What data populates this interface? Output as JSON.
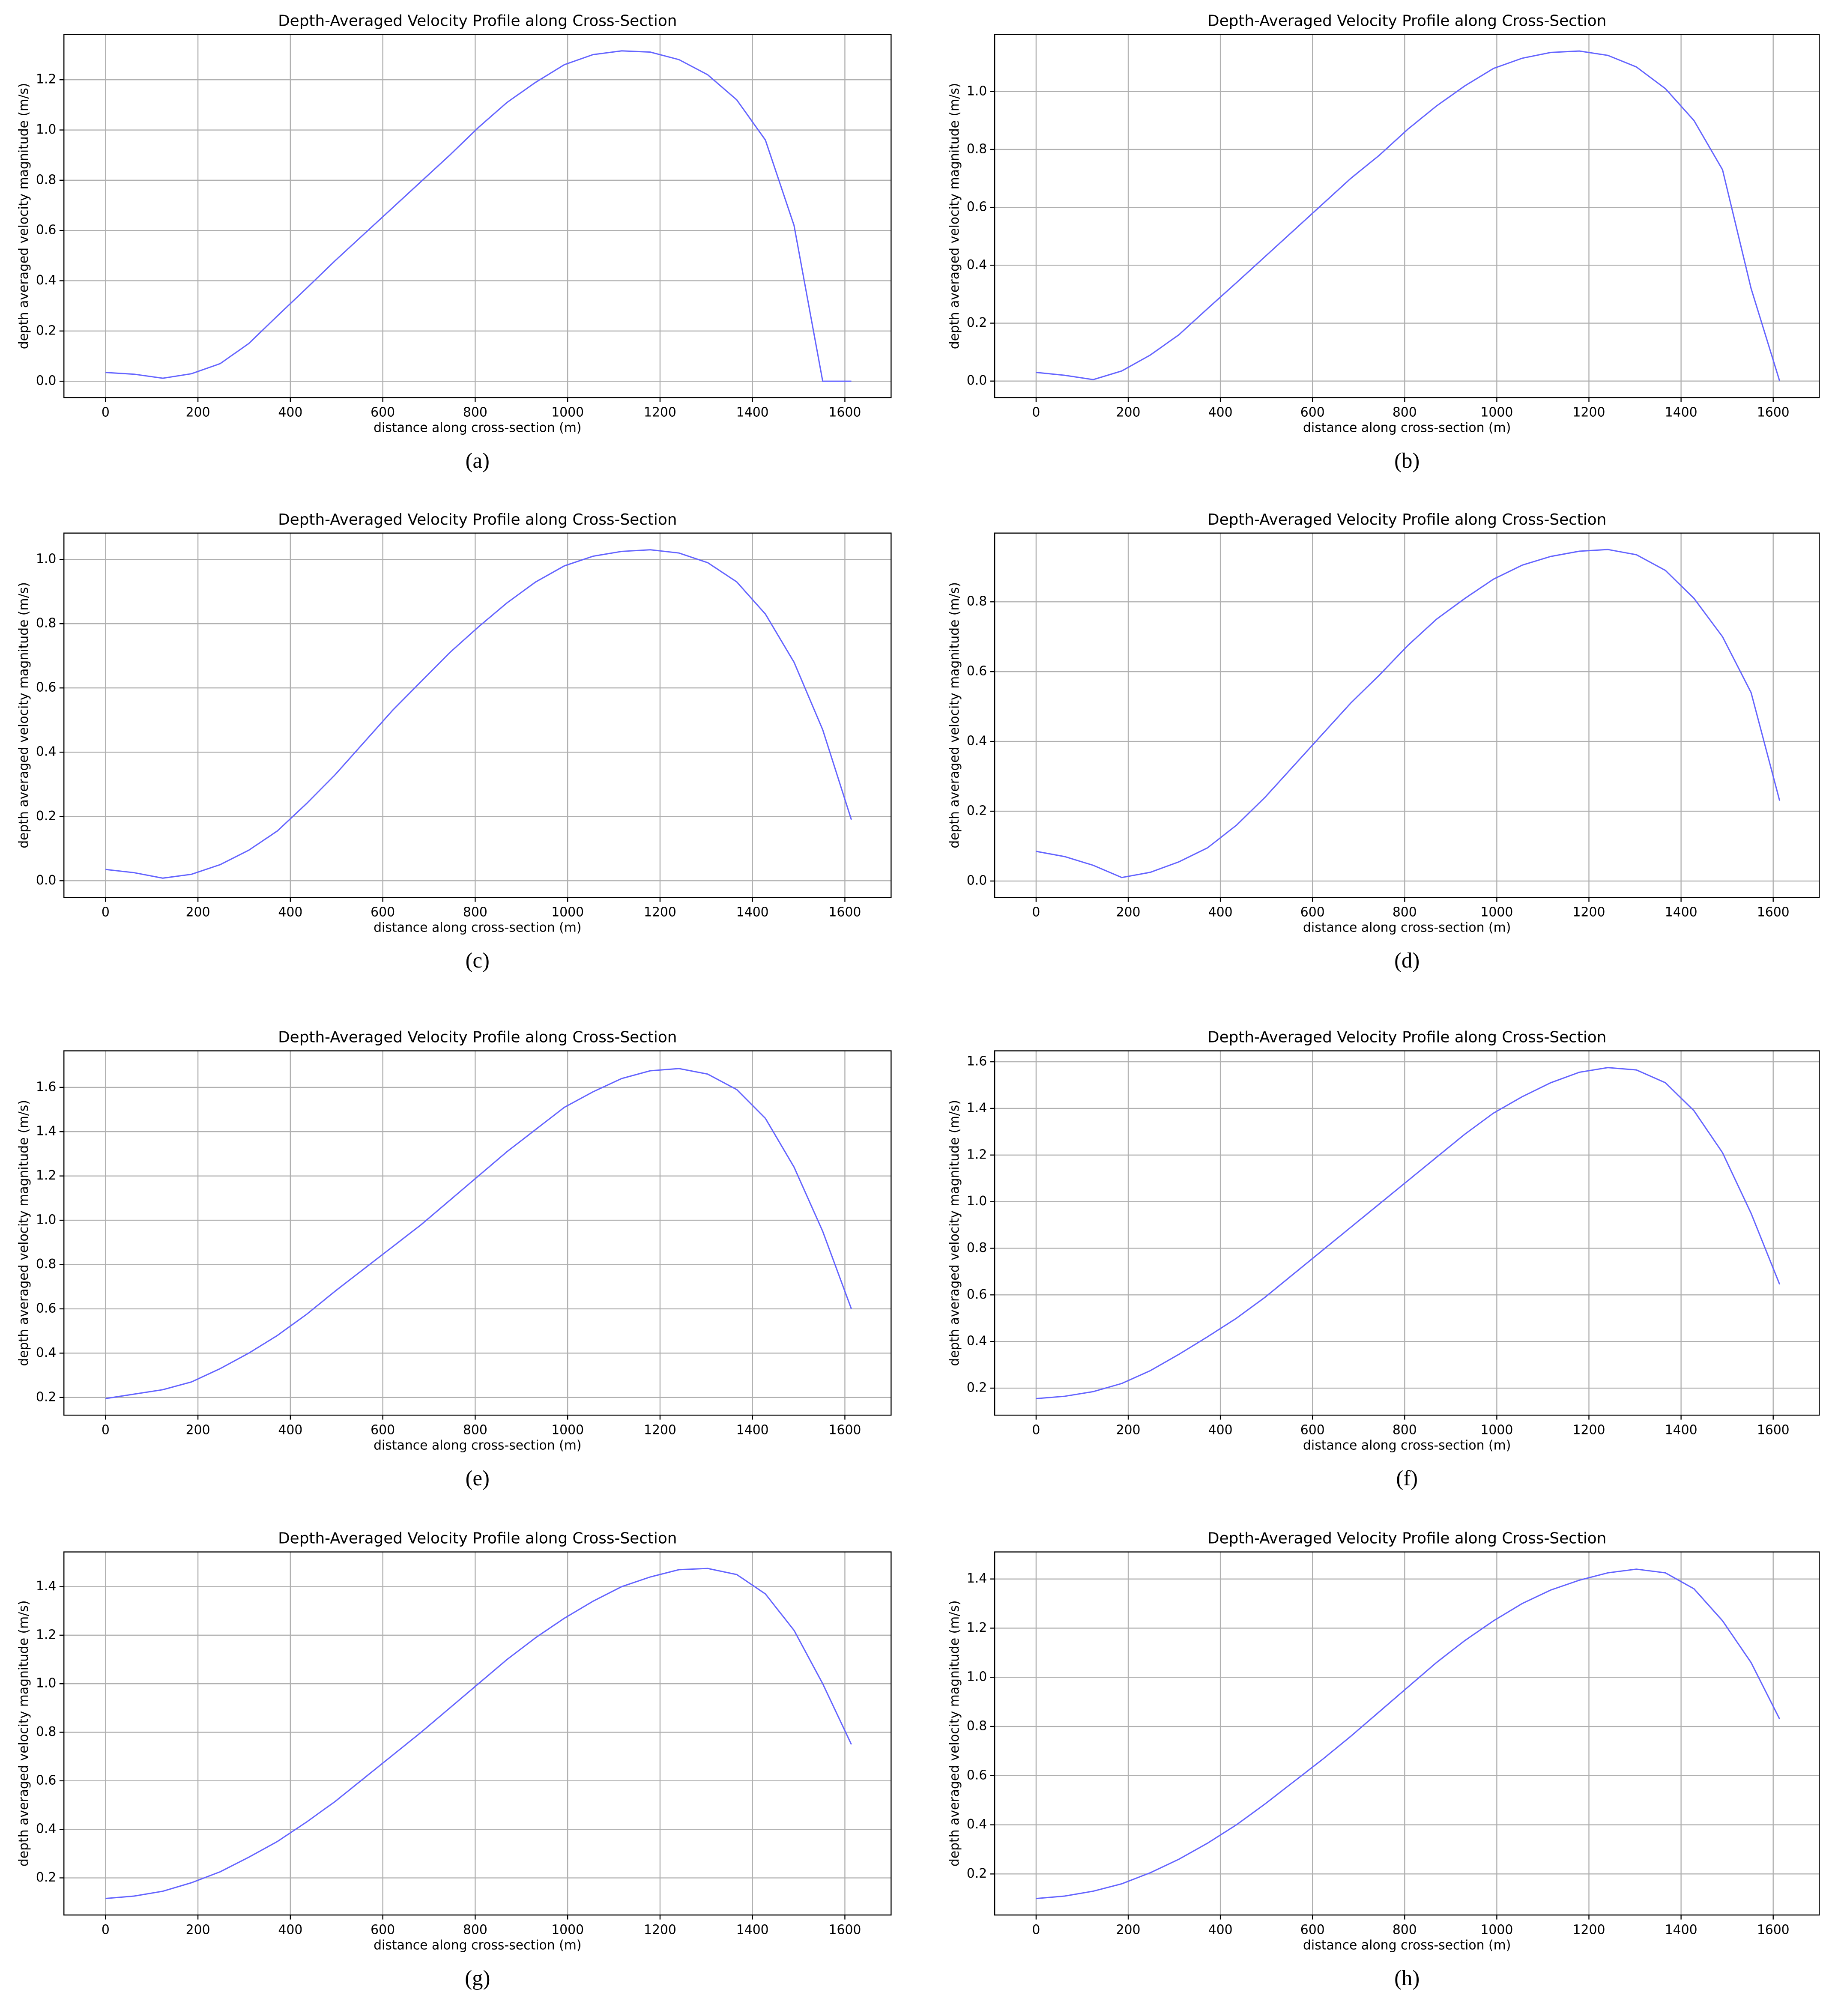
{
  "chart_data": [
    {
      "type": "line",
      "title": "Depth-Averaged Velocity Profile along Cross-Section",
      "xlabel": "distance along cross-section (m)",
      "ylabel": "depth averaged velocity magnitude (m/s)",
      "caption": "(a)",
      "color": "#6464ff",
      "x": [
        0,
        62,
        124,
        186,
        248,
        310,
        372,
        435,
        497,
        559,
        621,
        683,
        745,
        807,
        869,
        931,
        993,
        1055,
        1117,
        1179,
        1241,
        1303,
        1366,
        1428,
        1490,
        1552,
        1614
      ],
      "values": [
        0.035,
        0.028,
        0.012,
        0.03,
        0.07,
        0.15,
        0.26,
        0.37,
        0.48,
        0.585,
        0.69,
        0.795,
        0.9,
        1.01,
        1.11,
        1.19,
        1.26,
        1.3,
        1.315,
        1.31,
        1.28,
        1.22,
        1.12,
        0.96,
        0.62,
        0.0,
        0.0
      ],
      "xlim": [
        -90,
        1700
      ],
      "xticks": [
        0,
        200,
        400,
        600,
        800,
        1000,
        1200,
        1400,
        1600
      ],
      "ylim": [
        -0.065,
        1.38
      ],
      "yticks": [
        {
          "value": 0,
          "label": "0.0"
        },
        0.2,
        0.4,
        0.6,
        0.8,
        {
          "value": 1,
          "label": "1.0"
        },
        1.2
      ],
      "grid": true
    },
    {
      "type": "line",
      "title": "Depth-Averaged Velocity Profile along Cross-Section",
      "xlabel": "distance along cross-section (m)",
      "ylabel": "depth averaged velocity magnitude (m/s)",
      "caption": "(b)",
      "color": "#6464ff",
      "x": [
        0,
        62,
        124,
        186,
        248,
        310,
        372,
        435,
        497,
        559,
        621,
        683,
        745,
        807,
        869,
        931,
        993,
        1055,
        1117,
        1179,
        1241,
        1303,
        1366,
        1428,
        1490,
        1552,
        1614
      ],
      "values": [
        0.03,
        0.02,
        0.005,
        0.035,
        0.09,
        0.16,
        0.25,
        0.34,
        0.43,
        0.52,
        0.61,
        0.7,
        0.78,
        0.87,
        0.95,
        1.02,
        1.08,
        1.115,
        1.135,
        1.14,
        1.125,
        1.085,
        1.01,
        0.9,
        0.73,
        0.32,
        0.0
      ],
      "xlim": [
        -90,
        1700
      ],
      "xticks": [
        0,
        200,
        400,
        600,
        800,
        1000,
        1200,
        1400,
        1600
      ],
      "ylim": [
        -0.057,
        1.197
      ],
      "yticks": [
        {
          "value": 0,
          "label": "0.0"
        },
        0.2,
        0.4,
        0.6,
        0.8,
        {
          "value": 1,
          "label": "1.0"
        }
      ],
      "grid": true
    },
    {
      "type": "line",
      "title": "Depth-Averaged Velocity Profile along Cross-Section",
      "xlabel": "distance along cross-section (m)",
      "ylabel": "depth averaged velocity magnitude (m/s)",
      "caption": "(c)",
      "color": "#6464ff",
      "x": [
        0,
        62,
        124,
        186,
        248,
        310,
        372,
        435,
        497,
        559,
        621,
        683,
        745,
        807,
        869,
        931,
        993,
        1055,
        1117,
        1179,
        1241,
        1303,
        1366,
        1428,
        1490,
        1552,
        1614
      ],
      "values": [
        0.035,
        0.025,
        0.008,
        0.02,
        0.05,
        0.095,
        0.155,
        0.24,
        0.33,
        0.43,
        0.53,
        0.62,
        0.71,
        0.79,
        0.865,
        0.93,
        0.98,
        1.01,
        1.025,
        1.03,
        1.02,
        0.99,
        0.93,
        0.83,
        0.68,
        0.47,
        0.19
      ],
      "xlim": [
        -90,
        1700
      ],
      "xticks": [
        0,
        200,
        400,
        600,
        800,
        1000,
        1200,
        1400,
        1600
      ],
      "ylim": [
        -0.052,
        1.082
      ],
      "yticks": [
        {
          "value": 0,
          "label": "0.0"
        },
        0.2,
        0.4,
        0.6,
        0.8,
        {
          "value": 1,
          "label": "1.0"
        }
      ],
      "grid": true
    },
    {
      "type": "line",
      "title": "Depth-Averaged Velocity Profile along Cross-Section",
      "xlabel": "distance along cross-section (m)",
      "ylabel": "depth averaged velocity magnitude (m/s)",
      "caption": "(d)",
      "color": "#6464ff",
      "x": [
        0,
        62,
        124,
        186,
        248,
        310,
        372,
        435,
        497,
        559,
        621,
        683,
        745,
        807,
        869,
        931,
        993,
        1055,
        1117,
        1179,
        1241,
        1303,
        1366,
        1428,
        1490,
        1552,
        1614
      ],
      "values": [
        0.085,
        0.07,
        0.045,
        0.01,
        0.025,
        0.055,
        0.095,
        0.16,
        0.24,
        0.33,
        0.42,
        0.51,
        0.59,
        0.675,
        0.75,
        0.81,
        0.865,
        0.905,
        0.93,
        0.945,
        0.95,
        0.935,
        0.89,
        0.81,
        0.7,
        0.54,
        0.23
      ],
      "xlim": [
        -90,
        1700
      ],
      "xticks": [
        0,
        200,
        400,
        600,
        800,
        1000,
        1200,
        1400,
        1600
      ],
      "ylim": [
        -0.047,
        0.997
      ],
      "yticks": [
        {
          "value": 0,
          "label": "0.0"
        },
        0.2,
        0.4,
        0.6,
        0.8
      ],
      "grid": true
    },
    {
      "type": "line",
      "title": "Depth-Averaged Velocity Profile along Cross-Section",
      "xlabel": "distance along cross-section (m)",
      "ylabel": "depth averaged velocity magnitude (m/s)",
      "caption": "(e)",
      "color": "#6464ff",
      "x": [
        0,
        62,
        124,
        186,
        248,
        310,
        372,
        435,
        497,
        559,
        621,
        683,
        745,
        807,
        869,
        931,
        993,
        1055,
        1117,
        1179,
        1241,
        1303,
        1366,
        1428,
        1490,
        1552,
        1614
      ],
      "values": [
        0.195,
        0.215,
        0.235,
        0.27,
        0.33,
        0.4,
        0.48,
        0.575,
        0.68,
        0.78,
        0.88,
        0.98,
        1.09,
        1.2,
        1.31,
        1.41,
        1.51,
        1.58,
        1.64,
        1.675,
        1.685,
        1.66,
        1.59,
        1.46,
        1.24,
        0.95,
        0.6
      ],
      "xlim": [
        -90,
        1700
      ],
      "xticks": [
        0,
        200,
        400,
        600,
        800,
        1000,
        1200,
        1400,
        1600
      ],
      "ylim": [
        0.12,
        1.765
      ],
      "yticks": [
        0.2,
        0.4,
        0.6,
        0.8,
        {
          "value": 1,
          "label": "1.0"
        },
        1.2,
        1.4,
        1.6
      ],
      "grid": true
    },
    {
      "type": "line",
      "title": "Depth-Averaged Velocity Profile along Cross-Section",
      "xlabel": "distance along cross-section (m)",
      "ylabel": "depth averaged velocity magnitude (m/s)",
      "caption": "(f)",
      "color": "#6464ff",
      "x": [
        0,
        62,
        124,
        186,
        248,
        310,
        372,
        435,
        497,
        559,
        621,
        683,
        745,
        807,
        869,
        931,
        993,
        1055,
        1117,
        1179,
        1241,
        1303,
        1366,
        1428,
        1490,
        1552,
        1614
      ],
      "values": [
        0.155,
        0.165,
        0.185,
        0.22,
        0.275,
        0.345,
        0.42,
        0.5,
        0.59,
        0.69,
        0.79,
        0.89,
        0.99,
        1.09,
        1.19,
        1.29,
        1.38,
        1.45,
        1.51,
        1.555,
        1.575,
        1.565,
        1.51,
        1.39,
        1.21,
        0.95,
        0.645
      ],
      "xlim": [
        -90,
        1700
      ],
      "xticks": [
        0,
        200,
        400,
        600,
        800,
        1000,
        1200,
        1400,
        1600
      ],
      "ylim": [
        0.084,
        1.647
      ],
      "yticks": [
        0.2,
        0.4,
        0.6,
        0.8,
        {
          "value": 1,
          "label": "1.0"
        },
        1.2,
        1.4,
        1.6
      ],
      "grid": true
    },
    {
      "type": "line",
      "title": "Depth-Averaged Velocity Profile along Cross-Section",
      "xlabel": "distance along cross-section (m)",
      "ylabel": "depth averaged velocity magnitude (m/s)",
      "caption": "(g)",
      "color": "#6464ff",
      "x": [
        0,
        62,
        124,
        186,
        248,
        310,
        372,
        435,
        497,
        559,
        621,
        683,
        745,
        807,
        869,
        931,
        993,
        1055,
        1117,
        1179,
        1241,
        1303,
        1366,
        1428,
        1490,
        1552,
        1614
      ],
      "values": [
        0.115,
        0.125,
        0.145,
        0.18,
        0.225,
        0.285,
        0.35,
        0.43,
        0.515,
        0.61,
        0.705,
        0.8,
        0.9,
        1.0,
        1.1,
        1.19,
        1.27,
        1.34,
        1.4,
        1.44,
        1.47,
        1.475,
        1.45,
        1.37,
        1.22,
        1.0,
        0.75
      ],
      "xlim": [
        -90,
        1700
      ],
      "xticks": [
        0,
        200,
        400,
        600,
        800,
        1000,
        1200,
        1400,
        1600
      ],
      "ylim": [
        0.047,
        1.543
      ],
      "yticks": [
        0.2,
        0.4,
        0.6,
        0.8,
        {
          "value": 1,
          "label": "1.0"
        },
        1.2,
        1.4
      ],
      "grid": true
    },
    {
      "type": "line",
      "title": "Depth-Averaged Velocity Profile along Cross-Section",
      "xlabel": "distance along cross-section (m)",
      "ylabel": "depth averaged velocity magnitude (m/s)",
      "caption": "(h)",
      "color": "#6464ff",
      "x": [
        0,
        62,
        124,
        186,
        248,
        310,
        372,
        435,
        497,
        559,
        621,
        683,
        745,
        807,
        869,
        931,
        993,
        1055,
        1117,
        1179,
        1241,
        1303,
        1366,
        1428,
        1490,
        1552,
        1614
      ],
      "values": [
        0.1,
        0.11,
        0.13,
        0.16,
        0.205,
        0.26,
        0.325,
        0.4,
        0.485,
        0.575,
        0.665,
        0.76,
        0.86,
        0.96,
        1.06,
        1.15,
        1.23,
        1.3,
        1.355,
        1.395,
        1.425,
        1.44,
        1.425,
        1.36,
        1.23,
        1.06,
        0.83
      ],
      "xlim": [
        -90,
        1700
      ],
      "xticks": [
        0,
        200,
        400,
        600,
        800,
        1000,
        1200,
        1400,
        1600
      ],
      "ylim": [
        0.033,
        1.51
      ],
      "yticks": [
        0.2,
        0.4,
        0.6,
        0.8,
        {
          "value": 1,
          "label": "1.0"
        },
        1.2,
        1.4
      ],
      "grid": true
    }
  ]
}
